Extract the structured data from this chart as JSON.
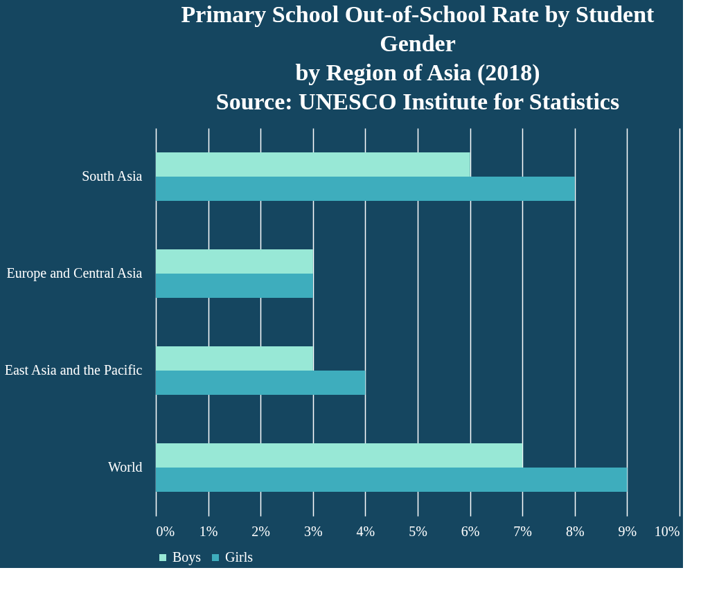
{
  "chart_data": {
    "type": "bar",
    "orientation": "horizontal",
    "title": "Primary School Out-of-School Rate by Student Gender",
    "subtitle": "by Region of Asia (2018)",
    "annotations": [
      "Source: UNESCO Institute for Statistics"
    ],
    "categories": [
      "South Asia",
      "Europe and Central Asia",
      "East Asia and the Pacific",
      "World"
    ],
    "series": [
      {
        "name": "Boys",
        "color": "#98e8d6",
        "values": [
          6,
          3,
          3,
          7
        ]
      },
      {
        "name": "Girls",
        "color": "#3eadbd",
        "values": [
          8,
          3,
          4,
          9
        ]
      }
    ],
    "xlim": [
      0,
      10
    ],
    "xticks": [
      {
        "value": 0,
        "label": "0%"
      },
      {
        "value": 1,
        "label": "1%"
      },
      {
        "value": 2,
        "label": "2%"
      },
      {
        "value": 3,
        "label": "3%"
      },
      {
        "value": 4,
        "label": "4%"
      },
      {
        "value": 5,
        "label": "5%"
      },
      {
        "value": 6,
        "label": "6%"
      },
      {
        "value": 7,
        "label": "7%"
      },
      {
        "value": 8,
        "label": "8%"
      },
      {
        "value": 9,
        "label": "9%"
      },
      {
        "value": 10,
        "label": "10%"
      }
    ],
    "grid": "x",
    "legend": "bottom"
  }
}
